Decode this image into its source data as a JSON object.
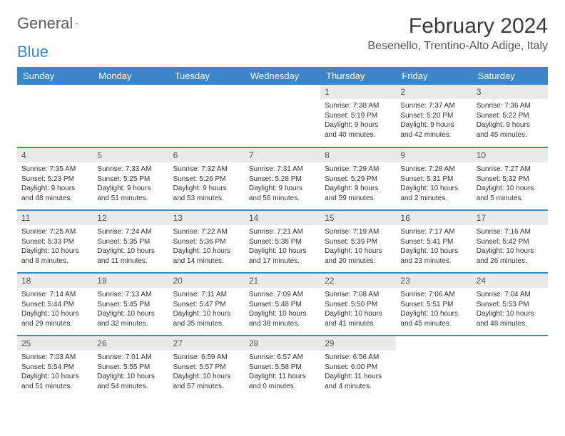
{
  "brand": {
    "word1": "General",
    "word2": "Blue"
  },
  "title": "February 2024",
  "location": "Besenello, Trentino-Alto Adige, Italy",
  "colors": {
    "header_bg": "#3a86c8",
    "header_text": "#ffffff",
    "daynum_bg": "#e9e9e9",
    "divider": "#3a86c8",
    "body_text": "#333333",
    "logo_gray": "#5a5a5a",
    "logo_blue": "#3a86c8"
  },
  "weekdays": [
    "Sunday",
    "Monday",
    "Tuesday",
    "Wednesday",
    "Thursday",
    "Friday",
    "Saturday"
  ],
  "weeks": [
    [
      {
        "empty": true
      },
      {
        "empty": true
      },
      {
        "empty": true
      },
      {
        "empty": true
      },
      {
        "day": "1",
        "sunrise": "Sunrise: 7:38 AM",
        "sunset": "Sunset: 5:19 PM",
        "daylight1": "Daylight: 9 hours",
        "daylight2": "and 40 minutes."
      },
      {
        "day": "2",
        "sunrise": "Sunrise: 7:37 AM",
        "sunset": "Sunset: 5:20 PM",
        "daylight1": "Daylight: 9 hours",
        "daylight2": "and 42 minutes."
      },
      {
        "day": "3",
        "sunrise": "Sunrise: 7:36 AM",
        "sunset": "Sunset: 5:22 PM",
        "daylight1": "Daylight: 9 hours",
        "daylight2": "and 45 minutes."
      }
    ],
    [
      {
        "day": "4",
        "sunrise": "Sunrise: 7:35 AM",
        "sunset": "Sunset: 5:23 PM",
        "daylight1": "Daylight: 9 hours",
        "daylight2": "and 48 minutes."
      },
      {
        "day": "5",
        "sunrise": "Sunrise: 7:33 AM",
        "sunset": "Sunset: 5:25 PM",
        "daylight1": "Daylight: 9 hours",
        "daylight2": "and 51 minutes."
      },
      {
        "day": "6",
        "sunrise": "Sunrise: 7:32 AM",
        "sunset": "Sunset: 5:26 PM",
        "daylight1": "Daylight: 9 hours",
        "daylight2": "and 53 minutes."
      },
      {
        "day": "7",
        "sunrise": "Sunrise: 7:31 AM",
        "sunset": "Sunset: 5:28 PM",
        "daylight1": "Daylight: 9 hours",
        "daylight2": "and 56 minutes."
      },
      {
        "day": "8",
        "sunrise": "Sunrise: 7:29 AM",
        "sunset": "Sunset: 5:29 PM",
        "daylight1": "Daylight: 9 hours",
        "daylight2": "and 59 minutes."
      },
      {
        "day": "9",
        "sunrise": "Sunrise: 7:28 AM",
        "sunset": "Sunset: 5:31 PM",
        "daylight1": "Daylight: 10 hours",
        "daylight2": "and 2 minutes."
      },
      {
        "day": "10",
        "sunrise": "Sunrise: 7:27 AM",
        "sunset": "Sunset: 5:32 PM",
        "daylight1": "Daylight: 10 hours",
        "daylight2": "and 5 minutes."
      }
    ],
    [
      {
        "day": "11",
        "sunrise": "Sunrise: 7:25 AM",
        "sunset": "Sunset: 5:33 PM",
        "daylight1": "Daylight: 10 hours",
        "daylight2": "and 8 minutes."
      },
      {
        "day": "12",
        "sunrise": "Sunrise: 7:24 AM",
        "sunset": "Sunset: 5:35 PM",
        "daylight1": "Daylight: 10 hours",
        "daylight2": "and 11 minutes."
      },
      {
        "day": "13",
        "sunrise": "Sunrise: 7:22 AM",
        "sunset": "Sunset: 5:36 PM",
        "daylight1": "Daylight: 10 hours",
        "daylight2": "and 14 minutes."
      },
      {
        "day": "14",
        "sunrise": "Sunrise: 7:21 AM",
        "sunset": "Sunset: 5:38 PM",
        "daylight1": "Daylight: 10 hours",
        "daylight2": "and 17 minutes."
      },
      {
        "day": "15",
        "sunrise": "Sunrise: 7:19 AM",
        "sunset": "Sunset: 5:39 PM",
        "daylight1": "Daylight: 10 hours",
        "daylight2": "and 20 minutes."
      },
      {
        "day": "16",
        "sunrise": "Sunrise: 7:17 AM",
        "sunset": "Sunset: 5:41 PM",
        "daylight1": "Daylight: 10 hours",
        "daylight2": "and 23 minutes."
      },
      {
        "day": "17",
        "sunrise": "Sunrise: 7:16 AM",
        "sunset": "Sunset: 5:42 PM",
        "daylight1": "Daylight: 10 hours",
        "daylight2": "and 26 minutes."
      }
    ],
    [
      {
        "day": "18",
        "sunrise": "Sunrise: 7:14 AM",
        "sunset": "Sunset: 5:44 PM",
        "daylight1": "Daylight: 10 hours",
        "daylight2": "and 29 minutes."
      },
      {
        "day": "19",
        "sunrise": "Sunrise: 7:13 AM",
        "sunset": "Sunset: 5:45 PM",
        "daylight1": "Daylight: 10 hours",
        "daylight2": "and 32 minutes."
      },
      {
        "day": "20",
        "sunrise": "Sunrise: 7:11 AM",
        "sunset": "Sunset: 5:47 PM",
        "daylight1": "Daylight: 10 hours",
        "daylight2": "and 35 minutes."
      },
      {
        "day": "21",
        "sunrise": "Sunrise: 7:09 AM",
        "sunset": "Sunset: 5:48 PM",
        "daylight1": "Daylight: 10 hours",
        "daylight2": "and 38 minutes."
      },
      {
        "day": "22",
        "sunrise": "Sunrise: 7:08 AM",
        "sunset": "Sunset: 5:50 PM",
        "daylight1": "Daylight: 10 hours",
        "daylight2": "and 41 minutes."
      },
      {
        "day": "23",
        "sunrise": "Sunrise: 7:06 AM",
        "sunset": "Sunset: 5:51 PM",
        "daylight1": "Daylight: 10 hours",
        "daylight2": "and 45 minutes."
      },
      {
        "day": "24",
        "sunrise": "Sunrise: 7:04 AM",
        "sunset": "Sunset: 5:53 PM",
        "daylight1": "Daylight: 10 hours",
        "daylight2": "and 48 minutes."
      }
    ],
    [
      {
        "day": "25",
        "sunrise": "Sunrise: 7:03 AM",
        "sunset": "Sunset: 5:54 PM",
        "daylight1": "Daylight: 10 hours",
        "daylight2": "and 51 minutes."
      },
      {
        "day": "26",
        "sunrise": "Sunrise: 7:01 AM",
        "sunset": "Sunset: 5:55 PM",
        "daylight1": "Daylight: 10 hours",
        "daylight2": "and 54 minutes."
      },
      {
        "day": "27",
        "sunrise": "Sunrise: 6:59 AM",
        "sunset": "Sunset: 5:57 PM",
        "daylight1": "Daylight: 10 hours",
        "daylight2": "and 57 minutes."
      },
      {
        "day": "28",
        "sunrise": "Sunrise: 6:57 AM",
        "sunset": "Sunset: 5:58 PM",
        "daylight1": "Daylight: 11 hours",
        "daylight2": "and 0 minutes."
      },
      {
        "day": "29",
        "sunrise": "Sunrise: 6:56 AM",
        "sunset": "Sunset: 6:00 PM",
        "daylight1": "Daylight: 11 hours",
        "daylight2": "and 4 minutes."
      },
      {
        "empty": true
      },
      {
        "empty": true
      }
    ]
  ]
}
